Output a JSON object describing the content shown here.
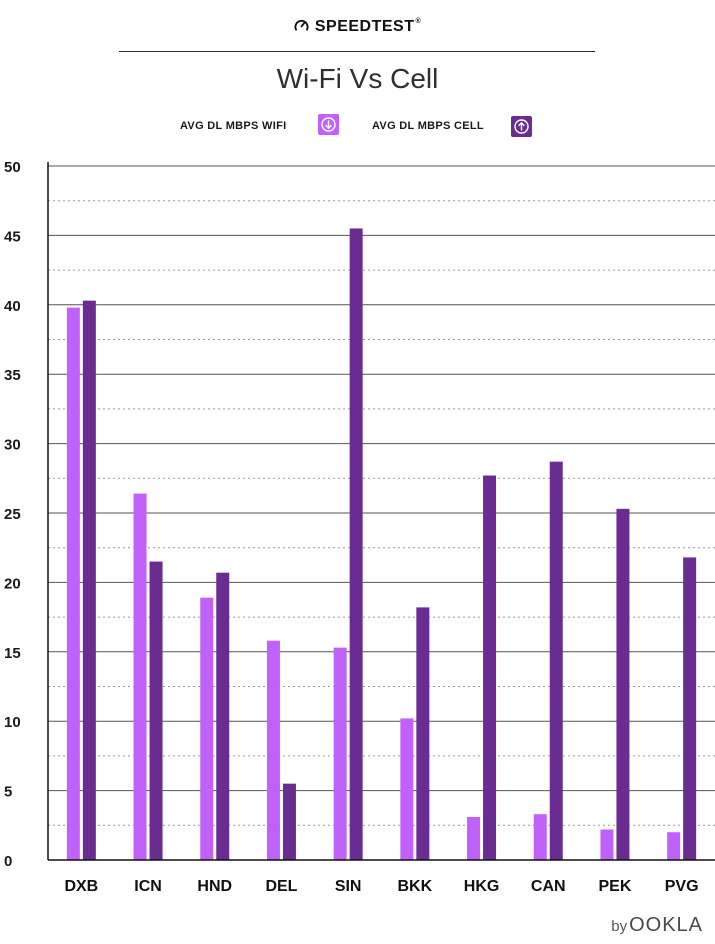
{
  "header": {
    "brand": "SPEEDTEST",
    "brand_mark": "®",
    "brand_icon": "speedometer-icon"
  },
  "footer": {
    "by": "by",
    "logo": "OOKLA"
  },
  "colors": {
    "wifi": "#c061fb",
    "cell": "#6a2c91",
    "grid_major": "#555555",
    "grid_minor": "#9a9a9a",
    "axis": "#111111"
  },
  "chart_data": {
    "type": "bar",
    "title": "Wi-Fi Vs Cell",
    "xlabel": "",
    "ylabel": "",
    "ylim": [
      0,
      50
    ],
    "yticks": [
      0,
      5,
      10,
      15,
      20,
      25,
      30,
      35,
      40,
      45,
      50
    ],
    "grid": true,
    "legend_position": "top-center",
    "categories": [
      "DXB",
      "ICN",
      "HND",
      "DEL",
      "SIN",
      "BKK",
      "HKG",
      "CAN",
      "PEK",
      "PVG"
    ],
    "series": [
      {
        "name": "AVG DL MBPS WIFI",
        "legend_icon": "download-arrow-icon",
        "values": [
          39.8,
          26.4,
          18.9,
          15.8,
          15.3,
          10.2,
          3.1,
          3.3,
          2.2,
          2.0
        ]
      },
      {
        "name": "AVG DL MBPS CELL",
        "legend_icon": "upload-arrow-icon",
        "values": [
          40.3,
          21.5,
          20.7,
          5.5,
          45.5,
          18.2,
          27.7,
          28.7,
          25.3,
          21.8
        ]
      }
    ]
  }
}
